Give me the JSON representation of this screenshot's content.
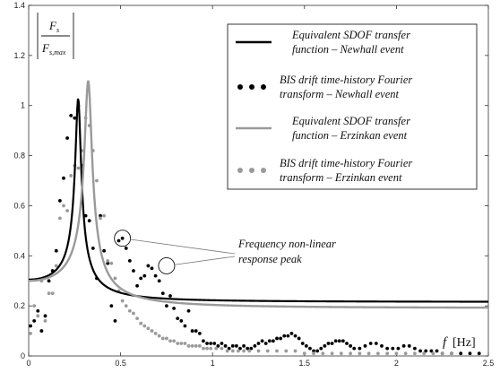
{
  "chart_data": {
    "type": "line",
    "title": "",
    "xlabel": "",
    "ylabel": "",
    "xlim": [
      0,
      2.5
    ],
    "ylim": [
      0,
      1.4
    ],
    "x_ticks": [
      "0",
      "0.5",
      "1",
      "1.5",
      "2",
      "2.5"
    ],
    "y_ticks": [
      "0",
      "0.2",
      "0.4",
      "0.6",
      "0.8",
      "1",
      "1.2",
      "1.4"
    ],
    "x_axis_title": {
      "var": "f",
      "unit": "[Hz]"
    },
    "y_axis_title": {
      "numerator": "F",
      "numerator_sub": "s",
      "denominator": "F",
      "denominator_sub": "s,max"
    },
    "grid": false,
    "legend_position": "top-right",
    "series": [
      {
        "name_line1": "Equivalent    SDOF    transfer",
        "name_line2": "function – Newhall event",
        "style": "line",
        "color": "#000000",
        "f0": 0.27,
        "zeta": 0.055,
        "base": 0.305,
        "peak": 1.03
      },
      {
        "name_line1": "BIS  drift  time-history  Fourier",
        "name_line2": "transform – Newhall event",
        "style": "dots",
        "color": "#000000",
        "points": [
          [
            0.01,
            0.12
          ],
          [
            0.03,
            0.14
          ],
          [
            0.05,
            0.18
          ],
          [
            0.07,
            0.1
          ],
          [
            0.09,
            0.16
          ],
          [
            0.11,
            0.3
          ],
          [
            0.13,
            0.34
          ],
          [
            0.15,
            0.42
          ],
          [
            0.17,
            0.62
          ],
          [
            0.19,
            0.71
          ],
          [
            0.21,
            0.87
          ],
          [
            0.23,
            0.96
          ],
          [
            0.25,
            0.95
          ],
          [
            0.27,
            1.0
          ],
          [
            0.29,
            0.76
          ],
          [
            0.31,
            0.56
          ],
          [
            0.33,
            0.54
          ],
          [
            0.35,
            0.43
          ],
          [
            0.37,
            0.31
          ],
          [
            0.39,
            0.56
          ],
          [
            0.41,
            0.42
          ],
          [
            0.43,
            0.37
          ],
          [
            0.45,
            0.2
          ],
          [
            0.47,
            0.14
          ],
          [
            0.49,
            0.46
          ],
          [
            0.51,
            0.47
          ],
          [
            0.53,
            0.43
          ],
          [
            0.55,
            0.38
          ],
          [
            0.57,
            0.34
          ],
          [
            0.59,
            0.28
          ],
          [
            0.61,
            0.31
          ],
          [
            0.63,
            0.32
          ],
          [
            0.65,
            0.36
          ],
          [
            0.67,
            0.35
          ],
          [
            0.69,
            0.32
          ],
          [
            0.71,
            0.3
          ],
          [
            0.73,
            0.25
          ],
          [
            0.75,
            0.2
          ],
          [
            0.77,
            0.24
          ],
          [
            0.79,
            0.19
          ],
          [
            0.81,
            0.15
          ],
          [
            0.83,
            0.14
          ],
          [
            0.85,
            0.12
          ],
          [
            0.87,
            0.18
          ],
          [
            0.89,
            0.1
          ],
          [
            0.91,
            0.1
          ],
          [
            0.93,
            0.09
          ],
          [
            0.95,
            0.06
          ],
          [
            0.97,
            0.05
          ],
          [
            0.99,
            0.05
          ],
          [
            1.01,
            0.05
          ],
          [
            1.03,
            0.04
          ],
          [
            1.05,
            0.05
          ],
          [
            1.07,
            0.04
          ],
          [
            1.09,
            0.03
          ],
          [
            1.11,
            0.04
          ],
          [
            1.13,
            0.04
          ],
          [
            1.15,
            0.03
          ],
          [
            1.17,
            0.04
          ],
          [
            1.19,
            0.03
          ],
          [
            1.21,
            0.03
          ],
          [
            1.23,
            0.04
          ],
          [
            1.25,
            0.05
          ],
          [
            1.27,
            0.06
          ],
          [
            1.29,
            0.05
          ],
          [
            1.31,
            0.06
          ],
          [
            1.33,
            0.06
          ],
          [
            1.35,
            0.07
          ],
          [
            1.37,
            0.07
          ],
          [
            1.39,
            0.08
          ],
          [
            1.41,
            0.08
          ],
          [
            1.43,
            0.09
          ],
          [
            1.45,
            0.08
          ],
          [
            1.47,
            0.07
          ],
          [
            1.49,
            0.05
          ],
          [
            1.51,
            0.04
          ],
          [
            1.53,
            0.03
          ],
          [
            1.55,
            0.02
          ],
          [
            1.57,
            0.02
          ],
          [
            1.59,
            0.03
          ],
          [
            1.61,
            0.04
          ],
          [
            1.63,
            0.05
          ],
          [
            1.65,
            0.05
          ],
          [
            1.67,
            0.06
          ],
          [
            1.69,
            0.06
          ],
          [
            1.71,
            0.06
          ],
          [
            1.73,
            0.05
          ],
          [
            1.75,
            0.04
          ],
          [
            1.77,
            0.03
          ],
          [
            1.8,
            0.03
          ],
          [
            1.83,
            0.04
          ],
          [
            1.86,
            0.05
          ],
          [
            1.89,
            0.05
          ],
          [
            1.92,
            0.04
          ],
          [
            1.95,
            0.03
          ],
          [
            1.98,
            0.03
          ],
          [
            2.01,
            0.03
          ],
          [
            2.04,
            0.04
          ],
          [
            2.07,
            0.04
          ],
          [
            2.1,
            0.03
          ],
          [
            2.13,
            0.02
          ],
          [
            2.16,
            0.02
          ],
          [
            2.19,
            0.02
          ],
          [
            2.22,
            0.02
          ],
          [
            2.25,
            0.01
          ],
          [
            2.3,
            0.01
          ],
          [
            2.35,
            0.01
          ],
          [
            2.4,
            0.01
          ],
          [
            2.45,
            0.01
          ]
        ]
      },
      {
        "name_line1": "Equivalent    SDOF    transfer",
        "name_line2": "function – Erzinkan event",
        "style": "line",
        "color": "#9a9a9a",
        "f0": 0.325,
        "zeta": 0.06,
        "base": 0.3,
        "peak": 1.1
      },
      {
        "name_line1": "BIS  drift  time-history  Fourier",
        "name_line2": "transform – Erzinkan event",
        "style": "dots",
        "color": "#9a9a9a",
        "points": [
          [
            0.01,
            0.09
          ],
          [
            0.03,
            0.2
          ],
          [
            0.05,
            0.16
          ],
          [
            0.07,
            0.3
          ],
          [
            0.09,
            0.14
          ],
          [
            0.11,
            0.25
          ],
          [
            0.13,
            0.25
          ],
          [
            0.15,
            0.36
          ],
          [
            0.17,
            0.55
          ],
          [
            0.19,
            0.6
          ],
          [
            0.21,
            0.58
          ],
          [
            0.23,
            0.72
          ],
          [
            0.25,
            0.76
          ],
          [
            0.27,
            0.75
          ],
          [
            0.29,
            0.82
          ],
          [
            0.31,
            0.95
          ],
          [
            0.33,
            0.92
          ],
          [
            0.35,
            0.82
          ],
          [
            0.37,
            0.7
          ],
          [
            0.39,
            0.55
          ],
          [
            0.41,
            0.56
          ],
          [
            0.43,
            0.38
          ],
          [
            0.45,
            0.37
          ],
          [
            0.47,
            0.31
          ],
          [
            0.49,
            0.26
          ],
          [
            0.51,
            0.22
          ],
          [
            0.53,
            0.2
          ],
          [
            0.55,
            0.18
          ],
          [
            0.57,
            0.17
          ],
          [
            0.59,
            0.15
          ],
          [
            0.61,
            0.13
          ],
          [
            0.63,
            0.12
          ],
          [
            0.65,
            0.11
          ],
          [
            0.67,
            0.1
          ],
          [
            0.69,
            0.09
          ],
          [
            0.71,
            0.08
          ],
          [
            0.73,
            0.07
          ],
          [
            0.75,
            0.07
          ],
          [
            0.77,
            0.06
          ],
          [
            0.79,
            0.06
          ],
          [
            0.81,
            0.05
          ],
          [
            0.83,
            0.05
          ],
          [
            0.85,
            0.05
          ],
          [
            0.87,
            0.04
          ],
          [
            0.89,
            0.04
          ],
          [
            0.91,
            0.04
          ],
          [
            0.93,
            0.04
          ],
          [
            0.95,
            0.03
          ],
          [
            0.97,
            0.03
          ],
          [
            0.99,
            0.03
          ],
          [
            1.02,
            0.03
          ],
          [
            1.05,
            0.03
          ],
          [
            1.08,
            0.02
          ],
          [
            1.11,
            0.02
          ],
          [
            1.14,
            0.02
          ],
          [
            1.17,
            0.02
          ],
          [
            1.2,
            0.02
          ],
          [
            1.25,
            0.02
          ],
          [
            1.3,
            0.02
          ],
          [
            1.35,
            0.02
          ],
          [
            1.4,
            0.02
          ],
          [
            1.45,
            0.02
          ],
          [
            1.5,
            0.01
          ],
          [
            1.55,
            0.01
          ],
          [
            1.6,
            0.01
          ],
          [
            1.65,
            0.01
          ],
          [
            1.7,
            0.01
          ],
          [
            1.75,
            0.01
          ],
          [
            1.8,
            0.01
          ],
          [
            1.85,
            0.01
          ],
          [
            1.9,
            0.01
          ],
          [
            1.95,
            0.01
          ],
          [
            2.0,
            0.01
          ],
          [
            2.05,
            0.01
          ],
          [
            2.1,
            0.01
          ],
          [
            2.15,
            0.01
          ],
          [
            2.2,
            0.01
          ],
          [
            2.25,
            0.01
          ],
          [
            2.3,
            0.01
          ]
        ]
      }
    ],
    "annotation": {
      "line1": "Frequency   non-linear",
      "line2": "response peak",
      "targets": [
        [
          0.51,
          0.47
        ],
        [
          0.75,
          0.36
        ]
      ]
    }
  }
}
